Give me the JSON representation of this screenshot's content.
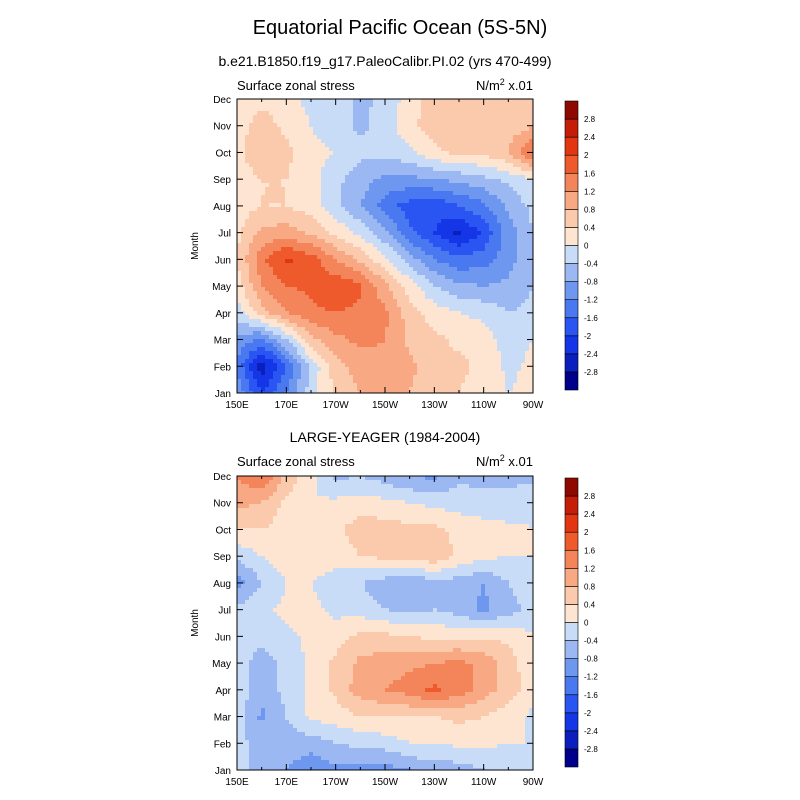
{
  "figure": {
    "title": "Equatorial Pacific Ocean (5S-5N)"
  },
  "chart_data": [
    {
      "type": "heatmap",
      "title": "b.e21.B1850.f19_g17.PaleoCalibr.PI.02 (yrs 470-499)",
      "left_label": "Surface zonal stress",
      "units_base": "N/m",
      "units_sup": "2",
      "units_scale": " x.01",
      "xlabel": "",
      "ylabel": "Month",
      "x_ticks": [
        "150E",
        "170E",
        "170W",
        "150W",
        "130W",
        "110W",
        "90W"
      ],
      "x_tick_lons": [
        150,
        170,
        190,
        210,
        230,
        250,
        270
      ],
      "xlim": [
        150,
        270
      ],
      "y_ticks": [
        "Jan",
        "Feb",
        "Mar",
        "Apr",
        "May",
        "Jun",
        "Jul",
        "Aug",
        "Sep",
        "Oct",
        "Nov",
        "Dec"
      ],
      "ylim": [
        1,
        12
      ],
      "x": [
        150,
        160,
        170,
        180,
        190,
        200,
        210,
        220,
        230,
        240,
        250,
        260,
        270
      ],
      "y": [
        1,
        2,
        3,
        4,
        5,
        6,
        7,
        8,
        9,
        10,
        11,
        12
      ],
      "values": [
        [
          -0.9,
          -2.0,
          -1.2,
          -0.2,
          0.5,
          0.8,
          1.0,
          0.8,
          0.5,
          0.4,
          0.2,
          0.0,
          0.1
        ],
        [
          -1.3,
          -2.7,
          -1.6,
          -0.3,
          0.6,
          1.0,
          1.1,
          0.9,
          0.6,
          0.5,
          0.3,
          -0.1,
          0.1
        ],
        [
          -0.9,
          -1.3,
          -0.4,
          0.7,
          1.1,
          1.3,
          1.2,
          0.7,
          0.5,
          0.3,
          0.2,
          -0.2,
          0.0
        ],
        [
          -0.2,
          0.6,
          1.2,
          1.5,
          1.6,
          1.5,
          1.3,
          0.6,
          0.2,
          0.0,
          -0.1,
          -0.4,
          -0.3
        ],
        [
          0.2,
          1.2,
          1.6,
          1.7,
          1.9,
          1.7,
          0.9,
          0.2,
          -0.4,
          -0.7,
          -0.8,
          -0.7,
          -0.4
        ],
        [
          0.4,
          1.5,
          2.1,
          1.8,
          1.2,
          0.7,
          0.1,
          -0.6,
          -1.2,
          -1.5,
          -1.4,
          -1.0,
          -0.4
        ],
        [
          0.3,
          0.9,
          1.0,
          0.7,
          0.3,
          -0.1,
          -0.7,
          -1.5,
          -2.0,
          -2.5,
          -1.9,
          -1.0,
          -0.4
        ],
        [
          0.2,
          0.4,
          0.4,
          0.2,
          -0.3,
          -0.8,
          -1.4,
          -1.8,
          -1.9,
          -1.6,
          -1.3,
          -0.7,
          -0.3
        ],
        [
          0.2,
          0.4,
          0.4,
          0.2,
          -0.3,
          -0.6,
          -0.9,
          -0.9,
          -0.8,
          -0.7,
          -0.5,
          -0.3,
          0.0
        ],
        [
          0.3,
          0.7,
          0.5,
          0.1,
          0.0,
          -0.3,
          -0.3,
          -0.1,
          0.3,
          0.5,
          0.5,
          0.8,
          1.7
        ],
        [
          0.2,
          0.6,
          0.3,
          0.0,
          -0.2,
          -0.5,
          -0.2,
          0.3,
          0.6,
          0.7,
          0.5,
          0.6,
          0.7
        ],
        [
          0.1,
          0.3,
          0.1,
          -0.1,
          -0.1,
          -0.5,
          -0.3,
          0.2,
          0.6,
          0.7,
          0.5,
          0.4,
          0.4
        ]
      ]
    },
    {
      "type": "heatmap",
      "title": "LARGE-YEAGER (1984-2004)",
      "left_label": "Surface zonal stress",
      "units_base": "N/m",
      "units_sup": "2",
      "units_scale": " x.01",
      "xlabel": "",
      "ylabel": "Month",
      "x_ticks": [
        "150E",
        "170E",
        "170W",
        "150W",
        "130W",
        "110W",
        "90W"
      ],
      "x_tick_lons": [
        150,
        170,
        190,
        210,
        230,
        250,
        270
      ],
      "xlim": [
        150,
        270
      ],
      "y_ticks": [
        "Jan",
        "Feb",
        "Mar",
        "Apr",
        "May",
        "Jun",
        "Jul",
        "Aug",
        "Sep",
        "Oct",
        "Nov",
        "Dec"
      ],
      "ylim": [
        1,
        12
      ],
      "x": [
        150,
        160,
        170,
        180,
        190,
        200,
        210,
        220,
        230,
        240,
        250,
        260,
        270
      ],
      "y": [
        1,
        2,
        3,
        4,
        5,
        6,
        7,
        8,
        9,
        10,
        11,
        12
      ],
      "values": [
        [
          -0.2,
          -0.6,
          -0.8,
          -1.1,
          -0.9,
          -0.9,
          -1.0,
          -0.8,
          -0.6,
          -0.6,
          -0.4,
          -0.3,
          -0.2
        ],
        [
          -0.3,
          -0.5,
          -0.6,
          -0.6,
          -0.4,
          -0.3,
          -0.2,
          0.0,
          0.0,
          0.1,
          0.1,
          0.0,
          0.0
        ],
        [
          -0.2,
          -0.9,
          -0.4,
          0.1,
          0.2,
          0.4,
          0.4,
          0.4,
          0.4,
          0.5,
          0.4,
          0.2,
          -0.1
        ],
        [
          -0.2,
          -0.6,
          -0.3,
          0.1,
          0.5,
          1.0,
          1.2,
          1.4,
          1.7,
          1.4,
          1.0,
          0.6,
          0.2
        ],
        [
          -0.2,
          -0.6,
          -0.3,
          0.1,
          0.5,
          0.9,
          1.0,
          1.1,
          1.2,
          1.3,
          1.1,
          0.6,
          0.1
        ],
        [
          -0.2,
          -0.3,
          -0.1,
          0.1,
          0.2,
          0.5,
          0.5,
          0.4,
          0.3,
          0.3,
          0.3,
          0.3,
          0.0
        ],
        [
          -0.3,
          -0.1,
          0.1,
          0.1,
          -0.1,
          -0.2,
          -0.4,
          -0.5,
          -0.4,
          -0.6,
          -0.9,
          -0.6,
          -0.2
        ],
        [
          -1.0,
          -0.4,
          0.0,
          0.0,
          -0.2,
          -0.4,
          -0.6,
          -0.8,
          -0.5,
          -0.6,
          -0.8,
          -0.4,
          -0.1
        ],
        [
          -0.3,
          0.0,
          0.2,
          0.2,
          0.2,
          0.4,
          0.5,
          0.6,
          0.7,
          0.3,
          0.1,
          0.0,
          0.0
        ],
        [
          0.4,
          0.4,
          0.2,
          0.1,
          0.3,
          0.6,
          0.6,
          0.5,
          0.5,
          0.3,
          0.2,
          0.1,
          0.0
        ],
        [
          0.9,
          0.8,
          0.3,
          0.0,
          0.1,
          0.2,
          0.1,
          0.0,
          -0.1,
          -0.2,
          -0.3,
          -0.3,
          -0.1
        ],
        [
          1.2,
          1.6,
          0.7,
          0.1,
          -0.5,
          -0.4,
          -0.6,
          -0.8,
          -0.9,
          -0.5,
          -0.5,
          -0.5,
          -0.5
        ]
      ]
    }
  ],
  "colorbar": {
    "levels": [
      -2.8,
      -2.4,
      -2,
      -1.6,
      -1.2,
      -0.8,
      -0.4,
      0,
      0.4,
      0.8,
      1.2,
      1.6,
      2,
      2.4,
      2.8
    ],
    "labels": [
      "-2.8",
      "-2.4",
      "-2",
      "-1.6",
      "-1.2",
      "-0.8",
      "-0.4",
      "0",
      "0.4",
      "0.8",
      "1.2",
      "1.6",
      "2",
      "2.4",
      "2.8"
    ],
    "colors": [
      "#00008b",
      "#0a1fbe",
      "#1436e6",
      "#2a55f2",
      "#4a78f0",
      "#6e97ef",
      "#9bb8f2",
      "#c8dbf7",
      "#fde5d2",
      "#fbc9ab",
      "#f8a882",
      "#f4845a",
      "#ef5a2c",
      "#e23612",
      "#c41d08",
      "#8e0a00"
    ]
  }
}
